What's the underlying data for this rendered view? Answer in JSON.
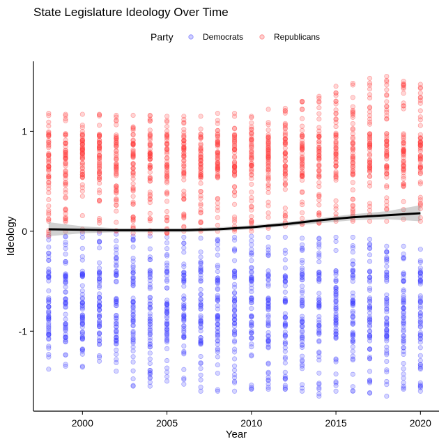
{
  "chart_data": {
    "type": "scatter",
    "title": "State Legislature Ideology Over Time",
    "xlabel": "Year",
    "ylabel": "Ideology",
    "xlim": [
      1997.1,
      2021.1
    ],
    "ylim": [
      -1.8,
      1.7
    ],
    "x_ticks": [
      2000,
      2005,
      2010,
      2015,
      2020
    ],
    "y_ticks": [
      -1,
      0,
      1
    ],
    "x_tick_labels": [
      "2000",
      "2005",
      "2010",
      "2015",
      "2020"
    ],
    "y_tick_labels": [
      "-1",
      "0",
      "1"
    ],
    "grid": false,
    "legend": {
      "title": "Party",
      "placement": "top",
      "entries": [
        "Democrats",
        "Republicans"
      ]
    },
    "colors": {
      "Democrats": "#4040ff",
      "Republicans": "#ff4040"
    },
    "years": [
      1998,
      1999,
      2000,
      2001,
      2002,
      2003,
      2004,
      2005,
      2006,
      2007,
      2008,
      2009,
      2010,
      2011,
      2012,
      2013,
      2014,
      2015,
      2016,
      2017,
      2018,
      2019,
      2020
    ],
    "series": [
      {
        "name": "Democrats",
        "marker": "circle",
        "alpha": 0.25,
        "range_by_year": [
          [
            -1.38,
            -0.05
          ],
          [
            -1.35,
            -0.05
          ],
          [
            -1.36,
            -0.02
          ],
          [
            -1.3,
            -0.02
          ],
          [
            -1.4,
            -0.03
          ],
          [
            -1.55,
            -0.05
          ],
          [
            -1.55,
            -0.05
          ],
          [
            -1.5,
            -0.06
          ],
          [
            -1.53,
            -0.06
          ],
          [
            -1.6,
            -0.07
          ],
          [
            -1.6,
            -0.08
          ],
          [
            -1.6,
            -0.06
          ],
          [
            -1.58,
            -0.05
          ],
          [
            -1.58,
            -0.06
          ],
          [
            -1.58,
            -0.06
          ],
          [
            -1.6,
            -0.07
          ],
          [
            -1.65,
            -0.07
          ],
          [
            -1.6,
            -0.06
          ],
          [
            -1.6,
            -0.06
          ],
          [
            -1.62,
            -0.08
          ],
          [
            -1.65,
            -0.15
          ],
          [
            -1.58,
            -0.15
          ],
          [
            -1.6,
            -0.18
          ]
        ],
        "clusters": [
          -1.05,
          -0.9,
          -0.72,
          -0.45
        ]
      },
      {
        "name": "Republicans",
        "marker": "circle",
        "alpha": 0.25,
        "range_by_year": [
          [
            -0.05,
            1.18
          ],
          [
            0.0,
            1.17
          ],
          [
            0.0,
            1.17
          ],
          [
            0.0,
            1.17
          ],
          [
            0.0,
            1.16
          ],
          [
            -0.02,
            1.16
          ],
          [
            -0.02,
            1.16
          ],
          [
            -0.02,
            1.15
          ],
          [
            0.0,
            1.15
          ],
          [
            0.0,
            1.15
          ],
          [
            0.0,
            1.18
          ],
          [
            0.0,
            1.18
          ],
          [
            0.0,
            1.15
          ],
          [
            0.03,
            1.22
          ],
          [
            0.05,
            1.23
          ],
          [
            0.07,
            1.3
          ],
          [
            0.08,
            1.35
          ],
          [
            0.1,
            1.45
          ],
          [
            0.1,
            1.48
          ],
          [
            0.1,
            1.53
          ],
          [
            0.1,
            1.55
          ],
          [
            0.12,
            1.5
          ],
          [
            0.1,
            1.47
          ]
        ],
        "clusters": [
          0.92,
          0.82,
          0.7,
          0.6
        ]
      },
      {
        "name": "",
        "type": "line",
        "x": [
          1998,
          2000,
          2002,
          2004,
          2006,
          2008,
          2010,
          2012,
          2014,
          2016,
          2018,
          2020
        ],
        "y": [
          0.02,
          0.015,
          0.01,
          0.01,
          0.01,
          0.02,
          0.04,
          0.07,
          0.11,
          0.14,
          0.16,
          0.18
        ],
        "band_lower": [
          -0.05,
          -0.02,
          -0.01,
          -0.01,
          -0.01,
          0.0,
          0.02,
          0.05,
          0.08,
          0.11,
          0.12,
          0.1
        ],
        "band_upper": [
          0.09,
          0.05,
          0.03,
          0.03,
          0.03,
          0.04,
          0.06,
          0.09,
          0.13,
          0.17,
          0.2,
          0.26
        ]
      }
    ]
  }
}
